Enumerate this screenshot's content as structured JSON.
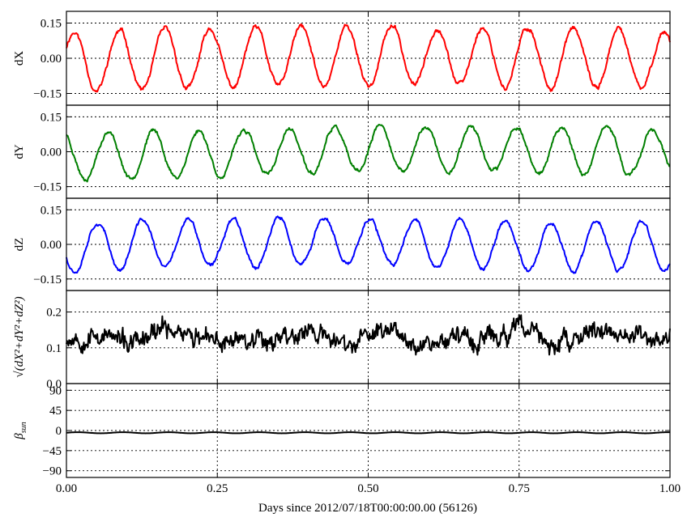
{
  "chart_data": {
    "type": "line",
    "xlabel": "Days since 2012/07/18T00:00:00.00 (56126)",
    "xlim": [
      0.0,
      1.0
    ],
    "xticks": [
      "0.00",
      "0.25",
      "0.50",
      "0.75",
      "1.00"
    ],
    "xtick_values": [
      0.0,
      0.25,
      0.5,
      0.75,
      1.0
    ],
    "grid": true,
    "panels": [
      {
        "ylabel": "dX",
        "ylim": [
          -0.2,
          0.2
        ],
        "yticks": [
          "0.15",
          "0.00",
          "−0.15"
        ],
        "ytick_values": [
          0.15,
          0.0,
          -0.15
        ],
        "color": "#ff0000",
        "series_shape": {
          "form": "sinusoid",
          "cycles": 13.3,
          "amplitude": 0.125,
          "phase": 0.5,
          "noise": 0.012,
          "seed": 11
        }
      },
      {
        "ylabel": "dY",
        "ylim": [
          -0.2,
          0.2
        ],
        "yticks": [
          "0.15",
          "0.00",
          "−0.15"
        ],
        "ytick_values": [
          0.15,
          0.0,
          -0.15
        ],
        "color": "#007f00",
        "series_shape": {
          "form": "sinusoid",
          "cycles": 13.3,
          "amplitude": 0.1,
          "phase": 2.1,
          "noise": 0.01,
          "seed": 23
        }
      },
      {
        "ylabel": "dZ",
        "ylim": [
          -0.2,
          0.2
        ],
        "yticks": [
          "0.15",
          "0.00",
          "−0.15"
        ],
        "ytick_values": [
          0.15,
          0.0,
          -0.15
        ],
        "color": "#0000ff",
        "series_shape": {
          "form": "sinusoid",
          "cycles": 13.3,
          "amplitude": 0.105,
          "phase": 3.6,
          "noise": 0.01,
          "seed": 37
        }
      },
      {
        "ylabel": "√(dX²+dY²+dZ²)",
        "ylim": [
          0.0,
          0.26
        ],
        "yticks": [
          "0.2",
          "0.1",
          "0.0"
        ],
        "ytick_values": [
          0.2,
          0.1,
          0.0
        ],
        "color": "#000000",
        "series_shape": {
          "form": "magnitude",
          "mean": 0.13,
          "amplitude": 0.025,
          "noise": 0.025,
          "seed": 53
        }
      },
      {
        "ylabel": "β_sun",
        "ylim": [
          -105,
          105
        ],
        "yticks": [
          "90",
          "45",
          "0",
          "−45",
          "−90"
        ],
        "ytick_values": [
          90,
          45,
          0,
          -45,
          -90
        ],
        "color": "#000000",
        "series_shape": {
          "form": "flat",
          "mean": -5,
          "amplitude": 1.2,
          "cycles": 13.3,
          "noise": 0.1,
          "seed": 71
        }
      }
    ]
  }
}
